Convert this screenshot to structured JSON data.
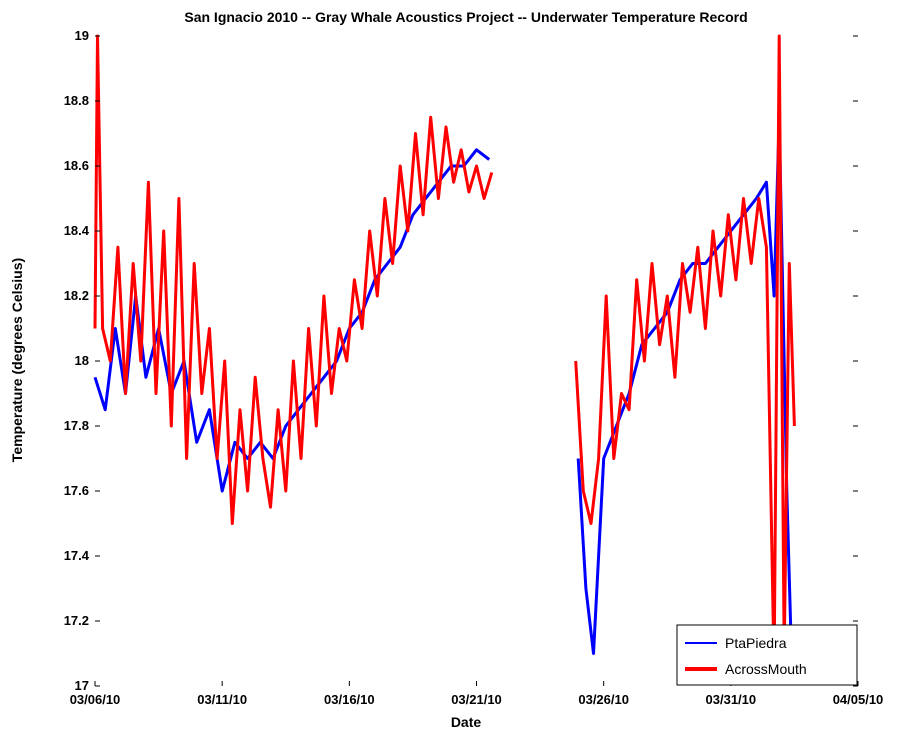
{
  "chart_data": {
    "type": "line",
    "title": "San Ignacio 2010 -- Gray Whale Acoustics Project -- Underwater Temperature Record",
    "xlabel": "Date",
    "ylabel": "Temperature (degrees Celsius)",
    "ylim": [
      17,
      19
    ],
    "yticks": [
      {
        "value": 17,
        "label": "17"
      },
      {
        "value": 17.2,
        "label": "17.2"
      },
      {
        "value": 17.4,
        "label": "17.4"
      },
      {
        "value": 17.6,
        "label": "17.6"
      },
      {
        "value": 17.8,
        "label": "17.8"
      },
      {
        "value": 18,
        "label": "18"
      },
      {
        "value": 18.2,
        "label": "18.2"
      },
      {
        "value": 18.4,
        "label": "18.4"
      },
      {
        "value": 18.6,
        "label": "18.6"
      },
      {
        "value": 18.8,
        "label": "18.8"
      },
      {
        "value": 19,
        "label": "19"
      }
    ],
    "xlim": [
      0,
      30
    ],
    "xticks": [
      {
        "day": 0,
        "label": "03/06/10"
      },
      {
        "day": 5,
        "label": "03/11/10"
      },
      {
        "day": 10,
        "label": "03/16/10"
      },
      {
        "day": 15,
        "label": "03/21/10"
      },
      {
        "day": 20,
        "label": "03/26/10"
      },
      {
        "day": 25,
        "label": "03/31/10"
      },
      {
        "day": 30,
        "label": "04/05/10"
      }
    ],
    "legend": {
      "placement": "bottom-right"
    },
    "grid": false,
    "series": [
      {
        "name": "PtaPiedra",
        "color": "#0000ff",
        "segments": [
          [
            [
              0,
              17.95
            ],
            [
              0.4,
              17.85
            ],
            [
              0.8,
              18.1
            ],
            [
              1.2,
              17.9
            ],
            [
              1.6,
              18.2
            ],
            [
              2,
              17.95
            ],
            [
              2.5,
              18.1
            ],
            [
              3,
              17.9
            ],
            [
              3.5,
              18.0
            ],
            [
              4,
              17.75
            ],
            [
              4.5,
              17.85
            ],
            [
              5,
              17.6
            ],
            [
              5.5,
              17.75
            ],
            [
              6,
              17.7
            ],
            [
              6.5,
              17.75
            ],
            [
              7,
              17.7
            ],
            [
              7.5,
              17.8
            ],
            [
              8,
              17.85
            ],
            [
              8.5,
              17.9
            ],
            [
              9,
              17.95
            ],
            [
              9.5,
              18.0
            ],
            [
              10,
              18.1
            ],
            [
              10.5,
              18.15
            ],
            [
              11,
              18.25
            ],
            [
              11.5,
              18.3
            ],
            [
              12,
              18.35
            ],
            [
              12.5,
              18.45
            ],
            [
              13,
              18.5
            ],
            [
              13.5,
              18.55
            ],
            [
              14,
              18.6
            ],
            [
              14.5,
              18.6
            ],
            [
              15,
              18.65
            ],
            [
              15.5,
              18.62
            ]
          ],
          [
            [
              19,
              17.7
            ],
            [
              19.3,
              17.3
            ],
            [
              19.6,
              17.1
            ],
            [
              20,
              17.7
            ],
            [
              20.5,
              17.8
            ],
            [
              21,
              17.9
            ],
            [
              21.5,
              18.05
            ],
            [
              22,
              18.1
            ],
            [
              22.5,
              18.15
            ],
            [
              23,
              18.25
            ],
            [
              23.5,
              18.3
            ],
            [
              24,
              18.3
            ],
            [
              24.5,
              18.35
            ],
            [
              25,
              18.4
            ],
            [
              25.5,
              18.45
            ],
            [
              26,
              18.5
            ],
            [
              26.4,
              18.55
            ],
            [
              26.7,
              18.2
            ],
            [
              26.9,
              18.75
            ],
            [
              27.2,
              17.6
            ],
            [
              27.4,
              17.05
            ]
          ]
        ]
      },
      {
        "name": "AcrossMouth",
        "color": "#ff0000",
        "segments": [
          [
            [
              0,
              18.1
            ],
            [
              0.1,
              19
            ],
            [
              0.3,
              18.1
            ],
            [
              0.6,
              18.0
            ],
            [
              0.9,
              18.35
            ],
            [
              1.2,
              17.9
            ],
            [
              1.5,
              18.3
            ],
            [
              1.8,
              18.0
            ],
            [
              2.1,
              18.55
            ],
            [
              2.4,
              17.9
            ],
            [
              2.7,
              18.4
            ],
            [
              3,
              17.8
            ],
            [
              3.3,
              18.5
            ],
            [
              3.6,
              17.7
            ],
            [
              3.9,
              18.3
            ],
            [
              4.2,
              17.9
            ],
            [
              4.5,
              18.1
            ],
            [
              4.8,
              17.7
            ],
            [
              5.1,
              18.0
            ],
            [
              5.4,
              17.5
            ],
            [
              5.7,
              17.85
            ],
            [
              6,
              17.6
            ],
            [
              6.3,
              17.95
            ],
            [
              6.6,
              17.7
            ],
            [
              6.9,
              17.55
            ],
            [
              7.2,
              17.85
            ],
            [
              7.5,
              17.6
            ],
            [
              7.8,
              18.0
            ],
            [
              8.1,
              17.7
            ],
            [
              8.4,
              18.1
            ],
            [
              8.7,
              17.8
            ],
            [
              9,
              18.2
            ],
            [
              9.3,
              17.9
            ],
            [
              9.6,
              18.1
            ],
            [
              9.9,
              18.0
            ],
            [
              10.2,
              18.25
            ],
            [
              10.5,
              18.1
            ],
            [
              10.8,
              18.4
            ],
            [
              11.1,
              18.2
            ],
            [
              11.4,
              18.5
            ],
            [
              11.7,
              18.3
            ],
            [
              12,
              18.6
            ],
            [
              12.3,
              18.4
            ],
            [
              12.6,
              18.7
            ],
            [
              12.9,
              18.45
            ],
            [
              13.2,
              18.75
            ],
            [
              13.5,
              18.5
            ],
            [
              13.8,
              18.72
            ],
            [
              14.1,
              18.55
            ],
            [
              14.4,
              18.65
            ],
            [
              14.7,
              18.52
            ],
            [
              15,
              18.6
            ],
            [
              15.3,
              18.5
            ],
            [
              15.6,
              18.58
            ]
          ],
          [
            [
              18.9,
              18.0
            ],
            [
              19.2,
              17.6
            ],
            [
              19.5,
              17.5
            ],
            [
              19.8,
              17.7
            ],
            [
              20.1,
              18.2
            ],
            [
              20.4,
              17.7
            ],
            [
              20.7,
              17.9
            ],
            [
              21,
              17.85
            ],
            [
              21.3,
              18.25
            ],
            [
              21.6,
              18.0
            ],
            [
              21.9,
              18.3
            ],
            [
              22.2,
              18.05
            ],
            [
              22.5,
              18.2
            ],
            [
              22.8,
              17.95
            ],
            [
              23.1,
              18.3
            ],
            [
              23.4,
              18.15
            ],
            [
              23.7,
              18.35
            ],
            [
              24,
              18.1
            ],
            [
              24.3,
              18.4
            ],
            [
              24.6,
              18.2
            ],
            [
              24.9,
              18.45
            ],
            [
              25.2,
              18.25
            ],
            [
              25.5,
              18.5
            ],
            [
              25.8,
              18.3
            ],
            [
              26.1,
              18.5
            ],
            [
              26.4,
              18.35
            ],
            [
              26.7,
              17.05
            ],
            [
              26.9,
              19
            ],
            [
              27.1,
              17.1
            ],
            [
              27.3,
              18.3
            ],
            [
              27.5,
              17.8
            ]
          ]
        ]
      }
    ]
  }
}
